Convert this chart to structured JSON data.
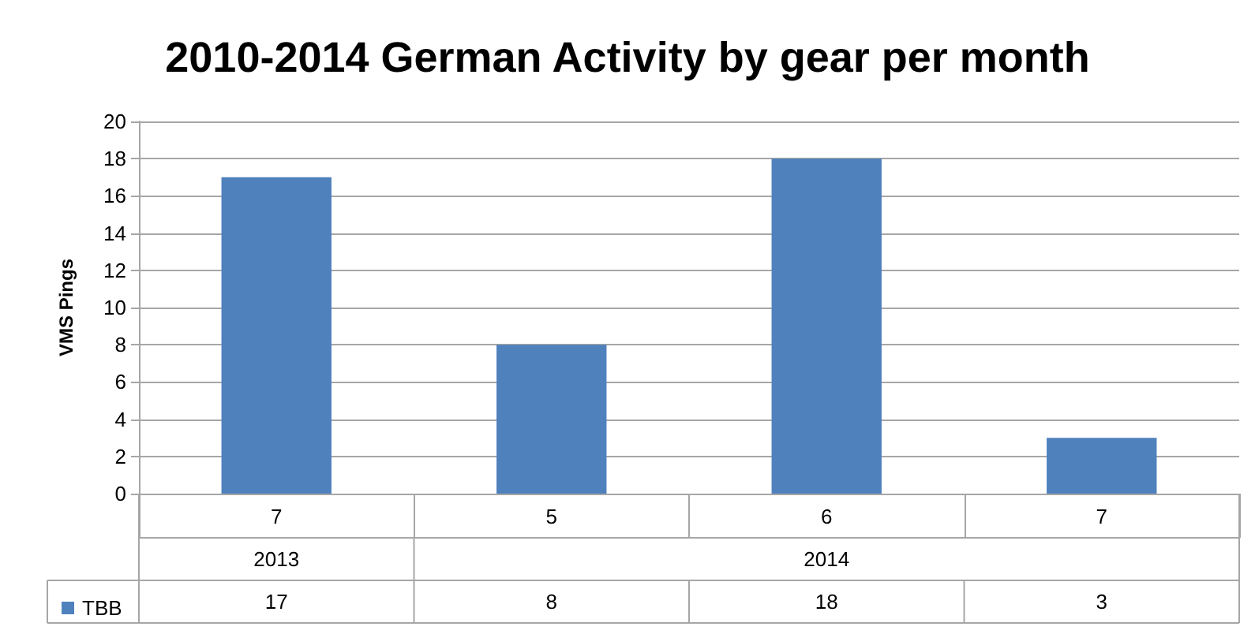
{
  "chart_data": {
    "type": "bar",
    "title": "2010-2014 German Activity by gear per month",
    "ylabel": "VMS Pings",
    "categories": [
      "7",
      "5",
      "6",
      "7"
    ],
    "annotations": [
      "2013",
      "2014"
    ],
    "series": [
      {
        "name": "TBB",
        "color": "#4f81bd",
        "values": [
          17,
          8,
          18,
          3
        ]
      }
    ],
    "ylim": [
      0,
      20
    ],
    "yticks": [
      0,
      2,
      4,
      6,
      8,
      10,
      12,
      14,
      16,
      18,
      20
    ],
    "grid": "y",
    "legend": "bottom left",
    "data_labels": true
  }
}
